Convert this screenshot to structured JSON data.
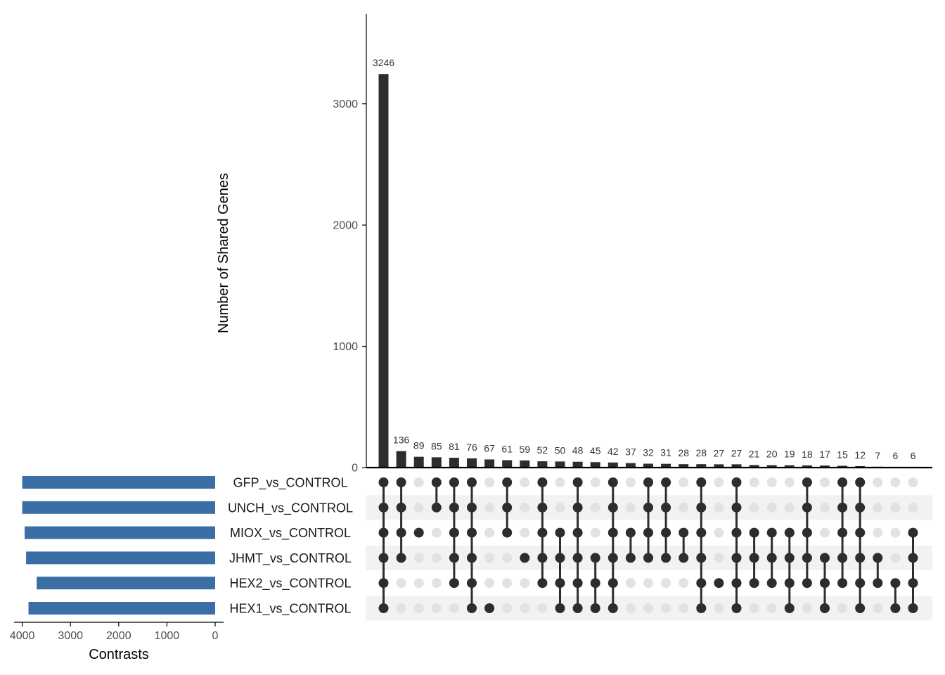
{
  "chart_data": {
    "type": "upset",
    "ylabel": "Number of Shared Genes",
    "y_ticks": [
      0,
      1000,
      2000,
      3000
    ],
    "ylim": [
      0,
      3750
    ],
    "set_size_label": "Contrasts",
    "set_size_ticks": [
      4000,
      3000,
      2000,
      1000,
      0
    ],
    "set_size_xlim": [
      4200,
      0
    ],
    "sets": [
      {
        "name": "GFP_vs_CONTROL",
        "size": 4000
      },
      {
        "name": "UNCH_vs_CONTROL",
        "size": 4000
      },
      {
        "name": "MIOX_vs_CONTROL",
        "size": 3950
      },
      {
        "name": "JHMT_vs_CONTROL",
        "size": 3920
      },
      {
        "name": "HEX2_vs_CONTROL",
        "size": 3700
      },
      {
        "name": "HEX1_vs_CONTROL",
        "size": 3870
      }
    ],
    "intersections": [
      {
        "value": 3246,
        "sets": [
          0,
          1,
          2,
          3,
          4,
          5
        ]
      },
      {
        "value": 136,
        "sets": [
          0,
          1,
          2,
          3
        ]
      },
      {
        "value": 89,
        "sets": [
          2
        ]
      },
      {
        "value": 85,
        "sets": [
          0,
          1
        ]
      },
      {
        "value": 81,
        "sets": [
          0,
          1,
          2,
          3,
          4
        ]
      },
      {
        "value": 76,
        "sets": [
          0,
          1,
          2,
          3,
          4,
          5
        ]
      },
      {
        "value": 67,
        "sets": [
          5
        ]
      },
      {
        "value": 61,
        "sets": [
          0,
          1,
          2
        ]
      },
      {
        "value": 59,
        "sets": [
          3
        ]
      },
      {
        "value": 52,
        "sets": [
          0,
          1,
          2,
          3,
          4
        ]
      },
      {
        "value": 50,
        "sets": [
          2,
          3,
          4,
          5
        ]
      },
      {
        "value": 48,
        "sets": [
          0,
          1,
          2,
          3,
          4,
          5
        ]
      },
      {
        "value": 45,
        "sets": [
          3,
          4,
          5
        ]
      },
      {
        "value": 42,
        "sets": [
          0,
          1,
          2,
          3,
          4,
          5
        ]
      },
      {
        "value": 37,
        "sets": [
          2,
          3
        ]
      },
      {
        "value": 32,
        "sets": [
          0,
          1,
          2,
          3
        ]
      },
      {
        "value": 31,
        "sets": [
          0,
          1,
          2,
          3
        ]
      },
      {
        "value": 28,
        "sets": [
          2,
          3
        ]
      },
      {
        "value": 28,
        "sets": [
          0,
          1,
          2,
          3,
          4,
          5
        ]
      },
      {
        "value": 27,
        "sets": [
          4
        ]
      },
      {
        "value": 27,
        "sets": [
          0,
          1,
          2,
          3,
          4,
          5
        ]
      },
      {
        "value": 21,
        "sets": [
          2,
          3,
          4
        ]
      },
      {
        "value": 20,
        "sets": [
          2,
          3,
          4
        ]
      },
      {
        "value": 19,
        "sets": [
          2,
          3,
          4,
          5
        ]
      },
      {
        "value": 18,
        "sets": [
          0,
          1,
          2,
          3,
          4
        ]
      },
      {
        "value": 17,
        "sets": [
          3,
          4,
          5
        ]
      },
      {
        "value": 15,
        "sets": [
          0,
          1,
          2,
          3,
          4
        ]
      },
      {
        "value": 12,
        "sets": [
          0,
          1,
          2,
          3,
          4,
          5
        ]
      },
      {
        "value": 7,
        "sets": [
          3,
          4
        ]
      },
      {
        "value": 6,
        "sets": [
          4,
          5
        ]
      },
      {
        "value": 6,
        "sets": [
          2,
          3,
          4,
          5
        ]
      }
    ],
    "colors": {
      "bar": "#2d2d2d",
      "set_bar": "#3a6ea5",
      "dot_active": "#2d2d2d",
      "dot_inactive": "#e2e2e2",
      "stripe": "#f2f2f2"
    }
  }
}
